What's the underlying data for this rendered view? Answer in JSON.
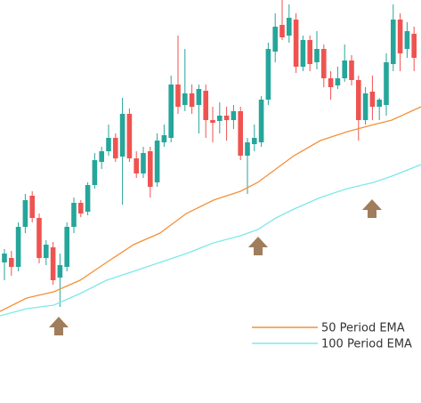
{
  "chart_data": {
    "type": "candlestick",
    "up_color": "#26a69a",
    "down_color": "#ef5350",
    "xlim": [
      -0.64,
      60
    ],
    "ylim": [
      0,
      453
    ],
    "open": [
      158,
      163,
      153,
      198,
      233,
      208,
      163,
      175,
      141,
      153,
      198,
      225,
      215,
      245,
      271,
      283,
      298,
      277,
      325,
      275,
      258,
      283,
      248,
      293,
      298,
      358,
      335,
      348,
      335,
      351,
      318,
      317,
      323,
      318,
      328,
      278,
      291,
      293,
      341,
      395,
      425,
      413,
      431,
      378,
      408,
      383,
      398,
      365,
      357,
      365,
      385,
      363,
      318,
      350,
      333,
      335,
      381,
      431,
      398,
      415
    ],
    "high": [
      173,
      171,
      203,
      235,
      238,
      213,
      183,
      181,
      168,
      203,
      231,
      228,
      248,
      281,
      288,
      313,
      303,
      343,
      331,
      283,
      288,
      288,
      303,
      313,
      368,
      413,
      398,
      358,
      358,
      358,
      333,
      338,
      333,
      335,
      333,
      298,
      313,
      345,
      405,
      438,
      453,
      448,
      438,
      413,
      413,
      418,
      403,
      373,
      378,
      403,
      391,
      368,
      355,
      368,
      343,
      393,
      448,
      438,
      428,
      423
    ],
    "low": [
      138,
      143,
      148,
      191,
      203,
      157,
      155,
      133,
      108,
      148,
      191,
      209,
      211,
      241,
      263,
      278,
      271,
      223,
      271,
      253,
      253,
      231,
      243,
      288,
      293,
      325,
      328,
      325,
      303,
      298,
      293,
      303,
      295,
      308,
      273,
      235,
      283,
      288,
      335,
      383,
      408,
      405,
      371,
      373,
      373,
      375,
      355,
      341,
      353,
      361,
      357,
      295,
      313,
      318,
      318,
      323,
      373,
      373,
      388,
      373
    ],
    "close": [
      168,
      153,
      198,
      228,
      208,
      163,
      178,
      138,
      155,
      198,
      225,
      213,
      245,
      273,
      283,
      298,
      275,
      325,
      275,
      258,
      281,
      243,
      295,
      301,
      358,
      333,
      348,
      333,
      353,
      318,
      315,
      323,
      318,
      328,
      278,
      293,
      298,
      341,
      398,
      423,
      411,
      433,
      378,
      408,
      381,
      398,
      365,
      355,
      365,
      385,
      363,
      318,
      348,
      333,
      341,
      383,
      431,
      393,
      418,
      388
    ],
    "series": [
      {
        "name": "50 Period EMA",
        "color": "#f4913a",
        "x": [
          -0.64,
          3.2,
          7.1,
          10.9,
          14.7,
          18.6,
          22.4,
          26.2,
          30.1,
          34,
          36.5,
          39.1,
          41.7,
          45.5,
          49.4,
          53.2,
          55.8,
          60
        ],
        "values": [
          103,
          118,
          125,
          138,
          158,
          178,
          191,
          213,
          228,
          238,
          248,
          263,
          278,
          295,
          305,
          313,
          318,
          333
        ]
      },
      {
        "name": "100 Period EMA",
        "color": "#7fe8e8",
        "x": [
          -0.64,
          3.2,
          7.1,
          10.9,
          14.7,
          18.6,
          22.4,
          26.2,
          30.1,
          34,
          36.5,
          39.1,
          41.7,
          45.5,
          49.4,
          53.2,
          55.8,
          60
        ],
        "values": [
          98,
          106,
          110,
          123,
          138,
          148,
          158,
          168,
          180,
          188,
          195,
          208,
          218,
          231,
          241,
          248,
          255,
          268
        ]
      }
    ]
  }
}
